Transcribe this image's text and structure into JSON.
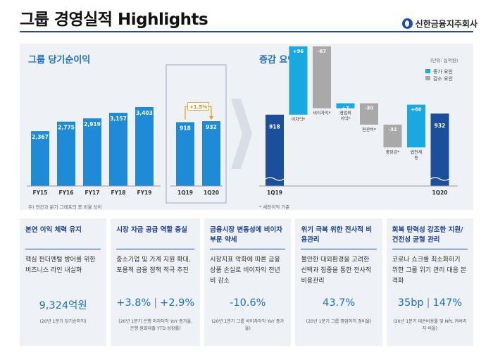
{
  "header": {
    "title": "그룹 경영실적 Highlights",
    "logo_text": "신한금융지주회사"
  },
  "left_section": {
    "title": "그룹 당기순이익",
    "note": "주) 연간과 분기 그래프의 종 비율 상이"
  },
  "right_section": {
    "title": "증감 요인",
    "unit": "(단위: 십억원)",
    "note": "* 세전이익 기준",
    "legend_increase": "증가 요인",
    "legend_decrease": "감소 요인"
  },
  "chart_data": [
    {
      "type": "bar",
      "title": "그룹 당기순이익 (연간)",
      "categories": [
        "FY15",
        "FY16",
        "FY17",
        "FY18",
        "FY19"
      ],
      "values": [
        2367,
        2775,
        2919,
        3157,
        3403
      ],
      "labels": [
        "2,367",
        "2,775",
        "2,919",
        "3,157",
        "3,403"
      ],
      "color": "#1f8ad6"
    },
    {
      "type": "bar",
      "title": "그룹 당기순이익 (분기)",
      "categories": [
        "1Q19",
        "1Q20"
      ],
      "values": [
        918,
        932
      ],
      "labels": [
        "918",
        "932"
      ],
      "growth_label": "+1.5%",
      "color": "#1f8ad6"
    },
    {
      "type": "bar",
      "subtype": "waterfall",
      "title": "증감 요인",
      "unit": "십억원",
      "bars": [
        {
          "name": "1Q19",
          "value": 918,
          "label": "918",
          "kind": "total",
          "text": ""
        },
        {
          "name": "이자익",
          "value": 96,
          "label": "+96",
          "kind": "increase",
          "text": "이자익*"
        },
        {
          "name": "비이자익",
          "value": -87,
          "label": "-87",
          "kind": "decrease",
          "text": "비이자익*"
        },
        {
          "name": "영업외이익",
          "value": 7,
          "label": "+7",
          "kind": "increase",
          "text": "영업외 이익*"
        },
        {
          "name": "판관비",
          "value": -30,
          "label": "-30",
          "kind": "decrease",
          "text": "판관비*"
        },
        {
          "name": "충당금",
          "value": -32,
          "label": "-32",
          "kind": "decrease",
          "text": "충당금*"
        },
        {
          "name": "법인세 등",
          "value": 60,
          "label": "+60",
          "kind": "increase",
          "text": "법인세 등"
        },
        {
          "name": "1Q20",
          "value": 932,
          "label": "932",
          "kind": "total",
          "text": ""
        }
      ],
      "x_labels": [
        "1Q19",
        "1Q20"
      ],
      "colors": {
        "total": "#1b4e9b",
        "increase": "#19a8e0",
        "decrease": "#a9a9a9"
      }
    }
  ],
  "cards": [
    {
      "title": "본연 이익 체력 유지",
      "desc": "핵심 펀더멘털 방어를 위한 비즈니스 라인 내실화",
      "value_a": "9,324억원",
      "value_b": "",
      "foot": "(20년 1분기 당기순이익)"
    },
    {
      "title": "시장 자금 공급 역할 충실",
      "desc": "중소기업 및 가계 지원 확대, 포용적 금융 정책 적극 추진",
      "value_a": "+3.8%",
      "value_b": "+2.9%",
      "foot": "(20년 1분기 은행 이자이익 YoY 증가율, 은행 원화대출 YTD 성장률)"
    },
    {
      "title": "금융시장 변동성에 비이자부문 약세",
      "desc": "시장지표 악화에 따른 금융상품 손실로 비이자익 전년비 감소",
      "value_a": "-10.6%",
      "value_b": "",
      "foot": "(20년 1분기 그룹 비이자이익 YoY 증가율)"
    },
    {
      "title": "위기 극복 위한 전사적 비용관리",
      "desc": "불안한 대외환경을 고려한 선택과 집중을 통한 전사적 비용관리",
      "value_a": "43.7%",
      "value_b": "",
      "foot": "(20년 1분기 그룹 영업이익 경비율)"
    },
    {
      "title": "회복 탄력성 강조한 지원/건전성 균형 관리",
      "desc": "코로나 쇼크를 최소화하기 위한 그룹 위기 관리 대응 본격화",
      "value_a": "35bp",
      "value_b": "147%",
      "foot": "(20년 1분기 대손비용률 및 NPL 커버리지 비율)"
    }
  ]
}
